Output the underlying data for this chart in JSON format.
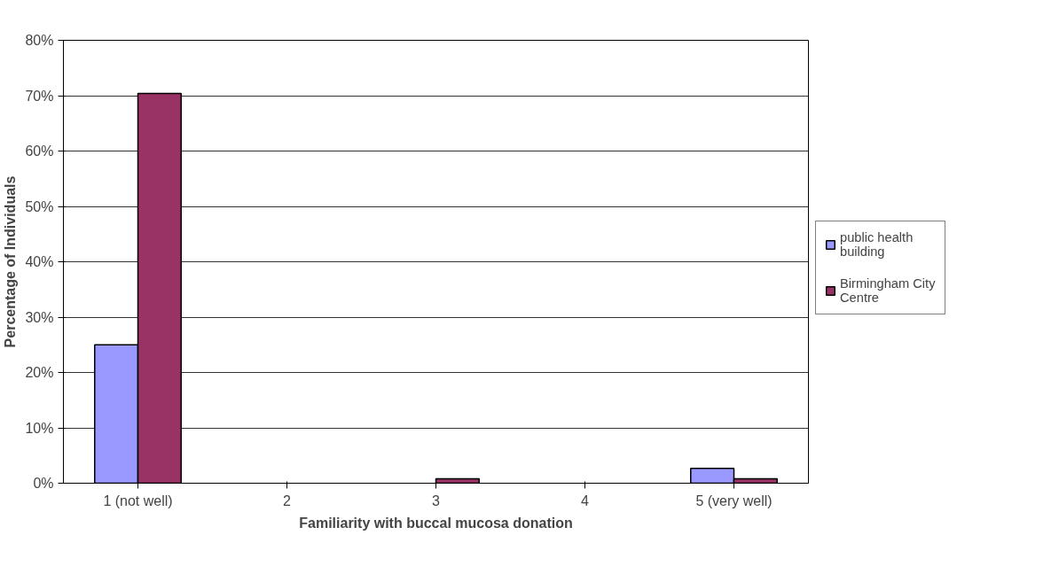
{
  "chart_data": {
    "type": "bar",
    "xlabel": "Familiarity with buccal mucosa donation",
    "ylabel": "Percentage of Individuals",
    "categories": [
      "1 (not well)",
      "2",
      "3",
      "4",
      "5 (very well)"
    ],
    "series": [
      {
        "name": "public health building",
        "color": "#9999ff",
        "values": [
          25,
          0,
          0,
          0,
          2.7
        ]
      },
      {
        "name": "Birmingham City Centre",
        "color": "#993366",
        "values": [
          70.4,
          0,
          0.8,
          0,
          0.8
        ]
      }
    ],
    "ylim": [
      0,
      80
    ],
    "yticks": [
      {
        "value": 0,
        "label": "0%"
      },
      {
        "value": 10,
        "label": "10%"
      },
      {
        "value": 20,
        "label": "20%"
      },
      {
        "value": 30,
        "label": "30%"
      },
      {
        "value": 40,
        "label": "40%"
      },
      {
        "value": 50,
        "label": "50%"
      },
      {
        "value": 60,
        "label": "60%"
      },
      {
        "value": 70,
        "label": "70%"
      },
      {
        "value": 80,
        "label": "80%"
      }
    ],
    "grid": "y",
    "legend": "right"
  }
}
